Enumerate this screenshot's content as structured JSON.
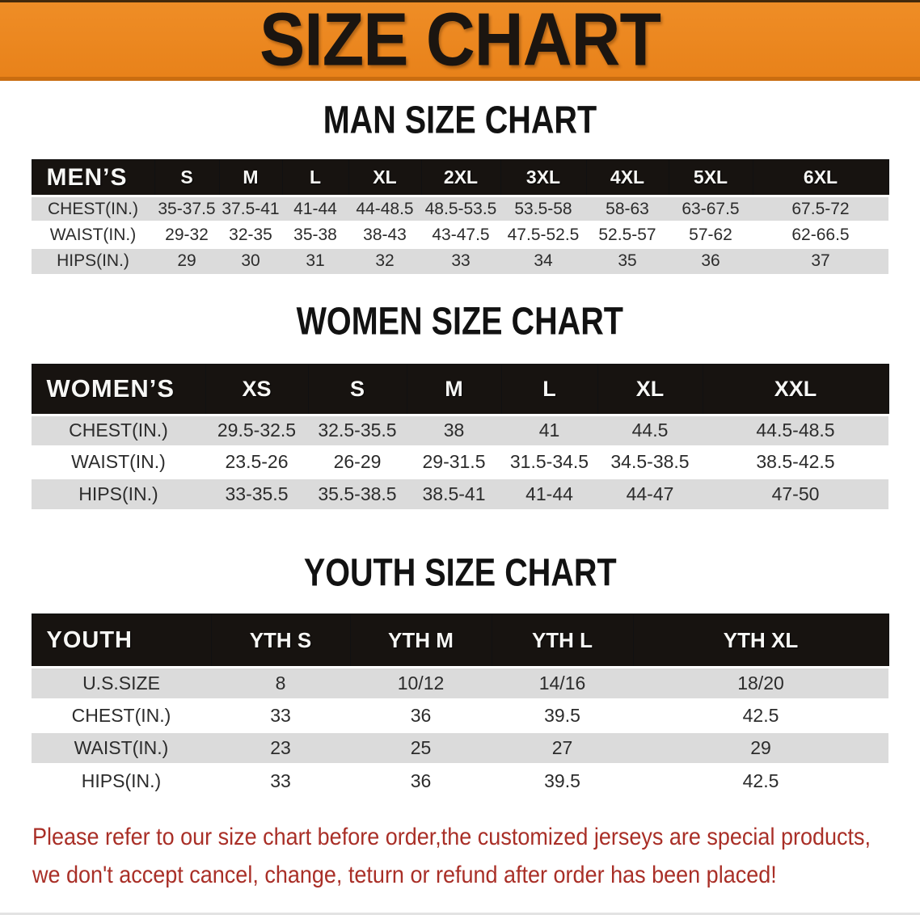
{
  "banner": {
    "title": "SIZE CHART"
  },
  "sections": [
    {
      "id": "men",
      "title": "MAN SIZE CHART",
      "header_label": "MEN’S",
      "columns": [
        "S",
        "M",
        "L",
        "XL",
        "2XL",
        "3XL",
        "4XL",
        "5XL",
        "6XL"
      ],
      "rows": [
        {
          "label": "CHEST(IN.)",
          "values": [
            "35-37.5",
            "37.5-41",
            "41-44",
            "44-48.5",
            "48.5-53.5",
            "53.5-58",
            "58-63",
            "63-67.5",
            "67.5-72"
          ]
        },
        {
          "label": "WAIST(IN.)",
          "values": [
            "29-32",
            "32-35",
            "35-38",
            "38-43",
            "43-47.5",
            "47.5-52.5",
            "52.5-57",
            "57-62",
            "62-66.5"
          ]
        },
        {
          "label": "HIPS(IN.)",
          "values": [
            "29",
            "30",
            "31",
            "32",
            "33",
            "34",
            "35",
            "36",
            "37"
          ]
        }
      ]
    },
    {
      "id": "women",
      "title": "WOMEN SIZE CHART",
      "header_label": "WOMEN’S",
      "columns": [
        "XS",
        "S",
        "M",
        "L",
        "XL",
        "XXL"
      ],
      "rows": [
        {
          "label": "CHEST(IN.)",
          "values": [
            "29.5-32.5",
            "32.5-35.5",
            "38",
            "41",
            "44.5",
            "44.5-48.5"
          ]
        },
        {
          "label": "WAIST(IN.)",
          "values": [
            "23.5-26",
            "26-29",
            "29-31.5",
            "31.5-34.5",
            "34.5-38.5",
            "38.5-42.5"
          ]
        },
        {
          "label": "HIPS(IN.)",
          "values": [
            "33-35.5",
            "35.5-38.5",
            "38.5-41",
            "41-44",
            "44-47",
            "47-50"
          ]
        }
      ]
    },
    {
      "id": "youth",
      "title": "YOUTH SIZE CHART",
      "header_label": "YOUTH",
      "columns": [
        "YTH S",
        "YTH M",
        "YTH L",
        "YTH XL"
      ],
      "rows": [
        {
          "label": "U.S.SIZE",
          "values": [
            "8",
            "10/12",
            "14/16",
            "18/20"
          ]
        },
        {
          "label": "CHEST(IN.)",
          "values": [
            "33",
            "36",
            "39.5",
            "42.5"
          ]
        },
        {
          "label": "WAIST(IN.)",
          "values": [
            "23",
            "25",
            "27",
            "29"
          ]
        },
        {
          "label": "HIPS(IN.)",
          "values": [
            "33",
            "36",
            "39.5",
            "42.5"
          ]
        }
      ]
    }
  ],
  "footer": {
    "line1": "Please refer to our size chart before order,the customized jerseys are special products,",
    "line2": "we don't accept cancel, change, teturn or refund after order has been placed!"
  },
  "colors": {
    "banner_bg": "#EB861E",
    "banner_border_bottom": "#C96D10",
    "header_bar": "#171310",
    "row_shade": "#DBDBDB",
    "notice_red": "#A92F27",
    "title_black": "#121212"
  }
}
